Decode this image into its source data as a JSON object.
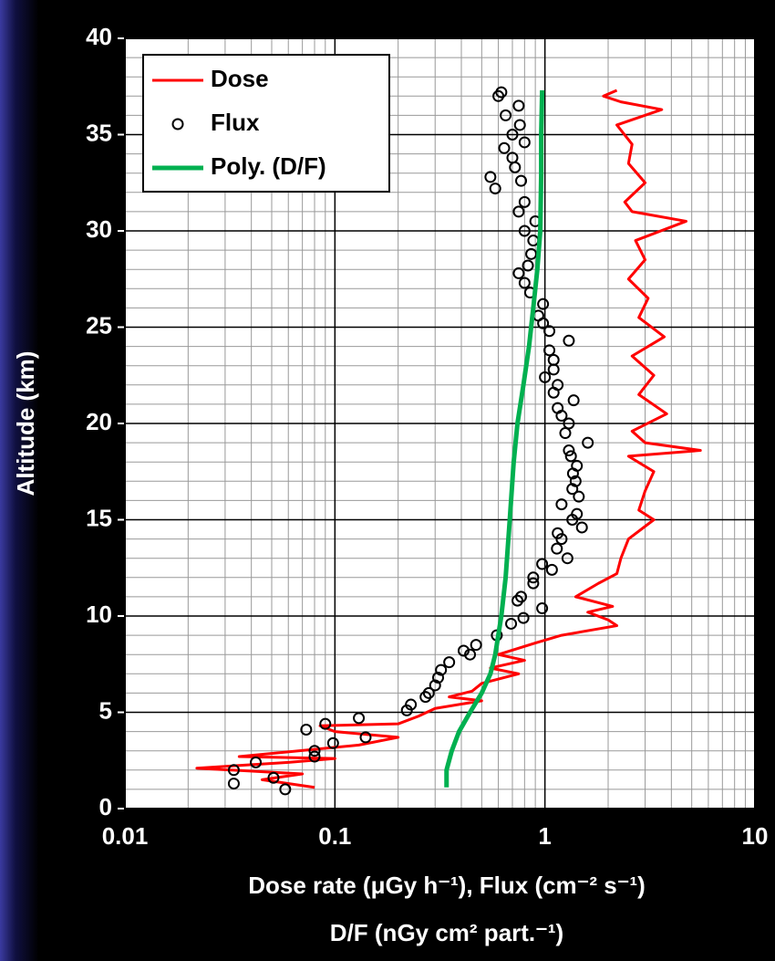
{
  "chart_data": {
    "type": "profile",
    "ylabel": "Altitude  (km)",
    "xlabel": [
      "Dose rate (μGy h⁻¹), Flux (cm⁻² s⁻¹)",
      "D/F (nGy cm² part.⁻¹)"
    ],
    "xlog": true,
    "grid": true,
    "minor_grid": true,
    "legend": "upper left",
    "xlim": [
      0.01,
      10
    ],
    "xticks": [
      0.01,
      0.1,
      1,
      10
    ],
    "ylim": [
      0,
      40
    ],
    "yticks": [
      0,
      5,
      10,
      15,
      20,
      25,
      30,
      35,
      40
    ],
    "series": [
      {
        "name": "Dose",
        "kind": "line",
        "color": "#ff0000",
        "x": [
          0.08,
          0.045,
          0.07,
          0.022,
          0.06,
          0.1,
          0.035,
          0.13,
          0.2,
          0.1,
          0.085,
          0.2,
          0.25,
          0.3,
          0.5,
          0.35,
          0.45,
          0.5,
          0.75,
          0.55,
          0.8,
          0.6,
          0.9,
          1.2,
          2.2,
          2.0,
          1.6,
          2.1,
          1.4,
          1.8,
          2.2,
          2.3,
          2.5,
          3.3,
          2.8,
          3.0,
          3.3,
          2.5,
          5.5,
          3.0,
          2.6,
          3.8,
          2.8,
          3.3,
          2.6,
          3.7,
          2.8,
          3.1,
          2.5,
          3.0,
          2.7,
          4.7,
          2.6,
          2.4,
          3.0,
          2.5,
          2.6,
          2.2,
          3.6,
          2.3,
          1.9,
          2.2
        ],
        "y": [
          1.1,
          1.5,
          1.8,
          2.1,
          2.4,
          2.6,
          2.7,
          3.3,
          3.7,
          4.0,
          4.3,
          4.4,
          4.8,
          5.2,
          5.6,
          5.8,
          6.1,
          6.5,
          7.0,
          7.3,
          7.7,
          8.0,
          8.6,
          9.0,
          9.5,
          9.8,
          10.2,
          10.5,
          11,
          11.7,
          12.2,
          13.0,
          14.0,
          15.0,
          15.5,
          16.5,
          17.5,
          18.3,
          18.6,
          19.0,
          19.6,
          20.5,
          21.5,
          22.5,
          23.5,
          24.5,
          25.5,
          26.5,
          27.5,
          28.5,
          29.5,
          30.5,
          31.0,
          31.5,
          32.5,
          33.5,
          34.5,
          35.5,
          36.3,
          36.7,
          37.0,
          37.3
        ]
      },
      {
        "name": "Flux",
        "kind": "scatter",
        "color": "#000000",
        "x": [
          0.058,
          0.033,
          0.051,
          0.033,
          0.042,
          0.08,
          0.08,
          0.098,
          0.14,
          0.073,
          0.09,
          0.13,
          0.22,
          0.23,
          0.27,
          0.28,
          0.3,
          0.31,
          0.32,
          0.35,
          0.44,
          0.41,
          0.47,
          0.59,
          0.69,
          0.79,
          0.97,
          0.74,
          0.77,
          0.88,
          0.88,
          1.08,
          0.97,
          1.28,
          1.14,
          1.2,
          1.15,
          1.5,
          1.35,
          1.42,
          1.2,
          1.45,
          1.35,
          1.4,
          1.36,
          1.42,
          1.33,
          1.3,
          1.6,
          1.25,
          1.3,
          1.2,
          1.15,
          1.37,
          1.1,
          1.15,
          1.0,
          1.1,
          1.1,
          1.05,
          1.3,
          1.05,
          0.98,
          0.93,
          0.98,
          0.85,
          0.8,
          0.75,
          0.83,
          0.86,
          0.88,
          0.8,
          0.9,
          0.75,
          0.8,
          0.58,
          0.77,
          0.55,
          0.72,
          0.7,
          0.64,
          0.8,
          0.7,
          0.76,
          0.65,
          0.75,
          0.6,
          0.62
        ],
        "y": [
          1.0,
          1.3,
          1.6,
          2.0,
          2.4,
          2.7,
          3.0,
          3.4,
          3.7,
          4.1,
          4.4,
          4.7,
          5.1,
          5.4,
          5.8,
          6.0,
          6.4,
          6.8,
          7.2,
          7.6,
          8.0,
          8.2,
          8.5,
          9.0,
          9.6,
          9.9,
          10.4,
          10.8,
          11.0,
          11.7,
          12.0,
          12.4,
          12.7,
          13.0,
          13.5,
          14.0,
          14.3,
          14.6,
          15.0,
          15.3,
          15.8,
          16.2,
          16.6,
          17.0,
          17.4,
          17.8,
          18.3,
          18.6,
          19.0,
          19.5,
          20.0,
          20.4,
          20.8,
          21.2,
          21.6,
          22.0,
          22.4,
          22.8,
          23.3,
          23.8,
          24.3,
          24.8,
          25.2,
          25.6,
          26.2,
          26.8,
          27.3,
          27.8,
          28.2,
          28.8,
          29.5,
          30.0,
          30.5,
          31.0,
          31.5,
          32.2,
          32.6,
          32.8,
          33.3,
          33.8,
          34.3,
          34.6,
          35.0,
          35.5,
          36.0,
          36.5,
          37.0,
          37.2
        ]
      },
      {
        "name": "Poly. (D/F)",
        "kind": "line",
        "color": "#00b050",
        "x": [
          0.34,
          0.34,
          0.36,
          0.39,
          0.44,
          0.5,
          0.55,
          0.58,
          0.62,
          0.65,
          0.68,
          0.71,
          0.74,
          0.79,
          0.84,
          0.88,
          0.92,
          0.95,
          0.96,
          0.96,
          0.97
        ],
        "y": [
          1.1,
          2,
          3,
          4,
          5,
          6,
          7,
          8,
          10,
          12,
          15,
          18,
          20,
          22,
          24,
          26,
          28,
          30,
          33,
          35,
          37.3
        ]
      }
    ]
  }
}
